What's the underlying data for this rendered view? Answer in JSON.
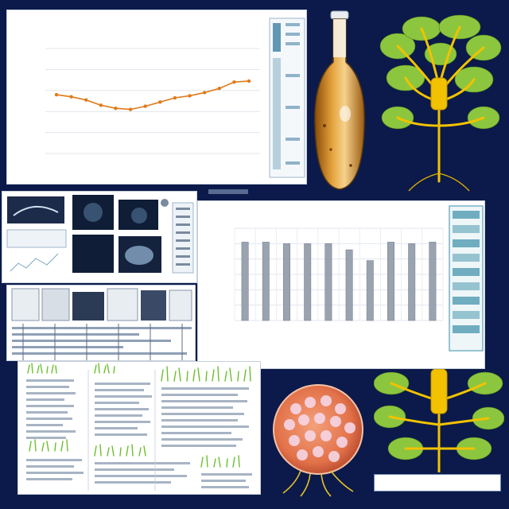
{
  "figure": {
    "background": "#0b1a4a"
  },
  "chart_data": [
    {
      "type": "line",
      "title": "",
      "xlabel": "",
      "ylabel": "",
      "x": [
        1,
        2,
        3,
        4,
        5,
        6,
        7,
        8,
        9,
        10,
        11,
        12,
        13,
        14
      ],
      "series": [
        {
          "values": [
            5.6,
            5.4,
            5.1,
            4.6,
            4.3,
            4.2,
            4.5,
            4.9,
            5.3,
            5.5,
            5.8,
            6.2,
            6.8,
            6.9
          ]
        }
      ],
      "ylim": [
        0,
        10
      ],
      "line_color": "#e07b1a",
      "grid": true
    },
    {
      "type": "bar",
      "title": "",
      "xlabel": "",
      "ylabel": "",
      "categories": [
        "",
        "",
        "",
        "",
        "",
        "",
        "",
        "",
        "",
        ""
      ],
      "values": [
        5.1,
        5.1,
        5.0,
        5.0,
        5.0,
        4.6,
        3.9,
        5.1,
        5.0,
        5.1
      ],
      "ylim": [
        0,
        6
      ],
      "bar_color": "#9aa3b0",
      "grid": true
    }
  ],
  "illustrations": {
    "flask_color": "#d98c1e",
    "tree_color": "#f2c200",
    "leaf_color": "#8cc63f",
    "cell_color": "#e2724a"
  }
}
